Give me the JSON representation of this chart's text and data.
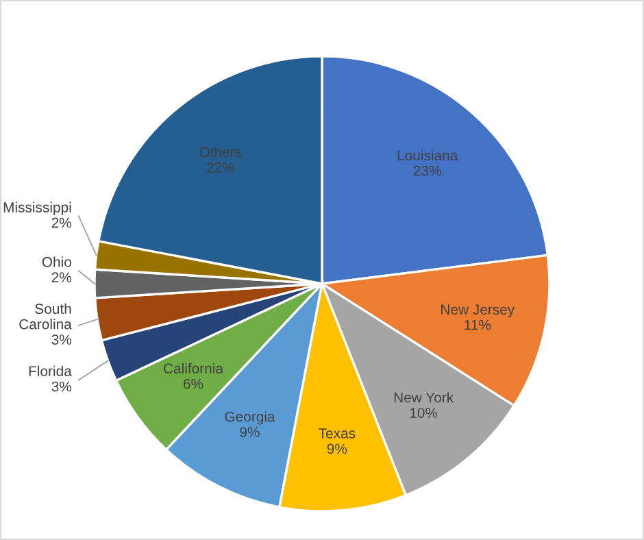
{
  "chart_data": {
    "type": "pie",
    "categories": [
      "Louisiana",
      "New Jersey",
      "New York",
      "Texas",
      "Georgia",
      "California",
      "Florida",
      "South Carolina",
      "Ohio",
      "Mississippi",
      "Others"
    ],
    "values": [
      23,
      11,
      10,
      9,
      9,
      6,
      3,
      3,
      2,
      2,
      22
    ],
    "value_labels": [
      "23%",
      "11%",
      "10%",
      "9%",
      "9%",
      "6%",
      "3%",
      "3%",
      "2%",
      "2%",
      "22%"
    ],
    "colors": [
      "#4472c4",
      "#ed7d31",
      "#a5a5a5",
      "#ffc000",
      "#5b9bd5",
      "#70ad47",
      "#264478",
      "#9e480e",
      "#636363",
      "#997300",
      "#255e91"
    ],
    "legend": false
  }
}
